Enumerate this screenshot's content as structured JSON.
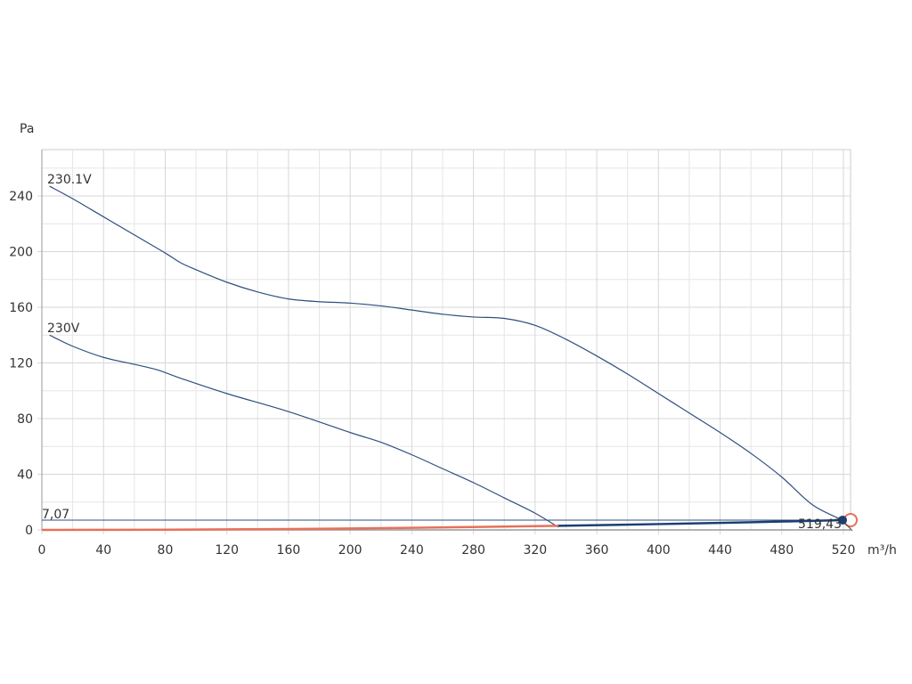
{
  "chart_data": {
    "type": "line",
    "xlabel": "m³/h",
    "ylabel": "Pa",
    "xlim": [
      0,
      520
    ],
    "ylim": [
      0,
      270
    ],
    "x_ticks": [
      0,
      40,
      80,
      120,
      160,
      200,
      240,
      280,
      320,
      360,
      400,
      440,
      480,
      520
    ],
    "y_ticks": [
      0,
      40,
      80,
      120,
      160,
      200,
      240
    ],
    "grid": true,
    "series": [
      {
        "name": "230.1V",
        "x": [
          5,
          20,
          40,
          60,
          80,
          90,
          100,
          120,
          140,
          160,
          180,
          200,
          220,
          240,
          260,
          280,
          300,
          320,
          340,
          360,
          380,
          400,
          420,
          440,
          460,
          480,
          500,
          519.43
        ],
        "y": [
          247,
          238,
          225,
          212,
          199,
          192,
          187,
          178,
          171,
          166,
          164,
          163,
          161,
          158,
          155,
          153,
          152,
          147,
          137,
          125,
          112,
          98,
          84,
          70,
          55,
          38,
          18,
          7.07
        ]
      },
      {
        "name": "230V",
        "x": [
          5,
          20,
          40,
          60,
          75,
          90,
          120,
          160,
          200,
          220,
          240,
          260,
          280,
          300,
          320,
          335
        ],
        "y": [
          140,
          132,
          124,
          119,
          115,
          109,
          98,
          85,
          70,
          63,
          54,
          44,
          34,
          23,
          12,
          2
        ]
      }
    ],
    "system_curve": {
      "x": [
        0,
        80,
        160,
        240,
        335,
        400,
        460,
        519.43
      ],
      "y": [
        0,
        0.17,
        0.67,
        1.51,
        2.94,
        4.2,
        5.5,
        7.07
      ]
    },
    "reference_line": {
      "value": 7.07,
      "label": "7,07"
    },
    "operating_point": {
      "x": 519.43,
      "y": 7.07,
      "label": "519,43"
    }
  },
  "colors": {
    "curve": "#2f4f7f",
    "grid": "#d7d7d7",
    "axis": "#999999",
    "system": "#e8705a",
    "operating": "#1b3f73",
    "ring": "#e8705a"
  }
}
